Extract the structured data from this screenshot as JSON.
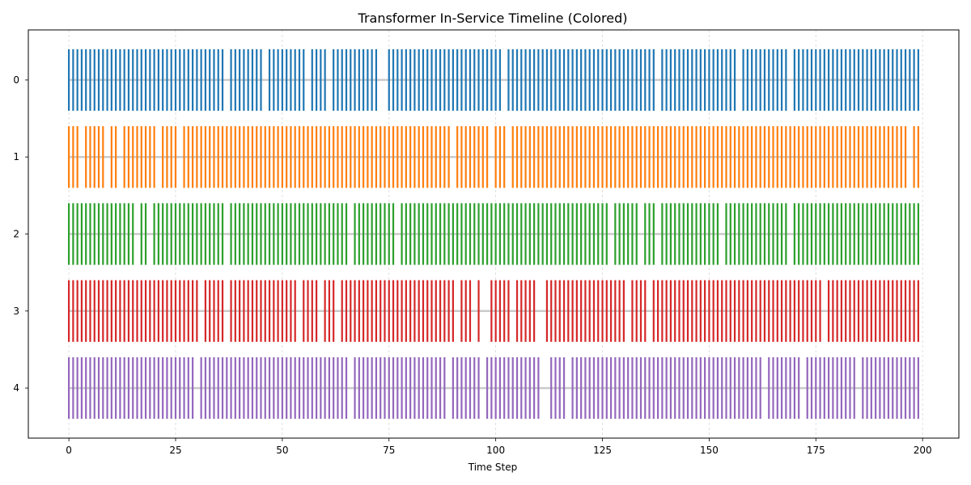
{
  "chart_data": {
    "type": "timeline",
    "title": "Transformer In-Service Timeline (Colored)",
    "xlabel": "Time Step",
    "ylabel": "",
    "xlim": [
      -9.5,
      208.5
    ],
    "ylim": [
      4.65,
      -0.65
    ],
    "x_ticks": [
      0,
      25,
      50,
      75,
      100,
      125,
      150,
      175,
      200
    ],
    "y_ticks": [
      0,
      1,
      2,
      3,
      4
    ],
    "grid": {
      "x": true,
      "y": false
    },
    "series": [
      {
        "row": 0,
        "color": "#1f77b4",
        "active_steps": [
          0,
          1,
          2,
          3,
          4,
          5,
          6,
          7,
          8,
          9,
          10,
          11,
          12,
          13,
          14,
          15,
          16,
          17,
          18,
          19,
          20,
          21,
          22,
          23,
          24,
          25,
          26,
          27,
          28,
          29,
          30,
          31,
          32,
          33,
          34,
          35,
          36,
          38,
          39,
          40,
          41,
          42,
          43,
          44,
          45,
          47,
          48,
          49,
          50,
          51,
          52,
          53,
          54,
          55,
          57,
          58,
          59,
          60,
          62,
          63,
          64,
          65,
          66,
          67,
          68,
          69,
          70,
          71,
          72,
          75,
          76,
          77,
          78,
          79,
          80,
          81,
          82,
          83,
          84,
          85,
          86,
          87,
          88,
          89,
          90,
          91,
          92,
          93,
          94,
          95,
          96,
          97,
          98,
          99,
          100,
          101,
          103,
          104,
          105,
          106,
          107,
          108,
          109,
          110,
          111,
          112,
          113,
          114,
          115,
          116,
          117,
          118,
          119,
          120,
          121,
          122,
          123,
          124,
          125,
          126,
          127,
          128,
          129,
          130,
          131,
          132,
          133,
          134,
          135,
          136,
          137,
          139,
          140,
          141,
          142,
          143,
          144,
          145,
          146,
          147,
          148,
          149,
          150,
          151,
          152,
          153,
          154,
          155,
          156,
          158,
          159,
          160,
          161,
          162,
          163,
          164,
          165,
          166,
          167,
          168,
          170,
          171,
          172,
          173,
          174,
          175,
          176,
          177,
          178,
          179,
          180,
          181,
          182,
          183,
          184,
          185,
          186,
          187,
          188,
          189,
          190,
          191,
          192,
          193,
          194,
          195,
          196,
          197,
          198,
          199
        ]
      },
      {
        "row": 1,
        "color": "#ff7f0e",
        "active_steps": [
          0,
          1,
          2,
          4,
          5,
          6,
          7,
          8,
          10,
          11,
          13,
          14,
          15,
          16,
          17,
          18,
          19,
          20,
          22,
          23,
          24,
          25,
          27,
          28,
          29,
          30,
          31,
          32,
          33,
          34,
          35,
          36,
          37,
          38,
          39,
          40,
          41,
          42,
          43,
          44,
          45,
          46,
          47,
          48,
          49,
          50,
          51,
          52,
          53,
          54,
          55,
          56,
          57,
          58,
          59,
          60,
          61,
          62,
          63,
          64,
          65,
          66,
          67,
          68,
          69,
          70,
          71,
          72,
          73,
          74,
          75,
          76,
          77,
          78,
          79,
          80,
          81,
          82,
          83,
          84,
          85,
          86,
          87,
          88,
          89,
          91,
          92,
          93,
          94,
          95,
          96,
          97,
          98,
          100,
          101,
          102,
          104,
          105,
          106,
          107,
          108,
          109,
          110,
          111,
          112,
          113,
          114,
          115,
          116,
          117,
          118,
          119,
          120,
          121,
          122,
          123,
          124,
          125,
          126,
          127,
          128,
          129,
          130,
          131,
          132,
          133,
          134,
          135,
          136,
          137,
          138,
          139,
          140,
          141,
          142,
          143,
          144,
          145,
          146,
          147,
          148,
          149,
          150,
          151,
          152,
          153,
          154,
          155,
          156,
          157,
          158,
          159,
          160,
          161,
          162,
          163,
          164,
          165,
          166,
          167,
          168,
          169,
          170,
          171,
          172,
          173,
          174,
          175,
          176,
          177,
          178,
          179,
          180,
          181,
          182,
          183,
          184,
          185,
          186,
          187,
          188,
          189,
          190,
          191,
          192,
          193,
          194,
          195,
          196,
          198,
          199
        ]
      },
      {
        "row": 2,
        "color": "#2ca02c",
        "active_steps": [
          0,
          1,
          2,
          3,
          4,
          5,
          6,
          7,
          8,
          9,
          10,
          11,
          12,
          13,
          14,
          15,
          17,
          18,
          20,
          21,
          22,
          23,
          24,
          25,
          26,
          27,
          28,
          29,
          30,
          31,
          32,
          33,
          34,
          35,
          36,
          38,
          39,
          40,
          41,
          42,
          43,
          44,
          45,
          46,
          47,
          48,
          49,
          50,
          51,
          52,
          53,
          54,
          55,
          56,
          57,
          58,
          59,
          60,
          61,
          62,
          63,
          64,
          65,
          67,
          68,
          69,
          70,
          71,
          72,
          73,
          74,
          75,
          76,
          78,
          79,
          80,
          81,
          82,
          83,
          84,
          85,
          86,
          87,
          88,
          89,
          90,
          91,
          92,
          93,
          94,
          95,
          96,
          97,
          98,
          99,
          100,
          101,
          102,
          103,
          104,
          105,
          106,
          107,
          108,
          109,
          110,
          111,
          112,
          113,
          114,
          115,
          116,
          117,
          118,
          119,
          120,
          121,
          122,
          123,
          124,
          125,
          126,
          128,
          129,
          130,
          131,
          132,
          133,
          135,
          136,
          137,
          139,
          140,
          141,
          142,
          143,
          144,
          145,
          146,
          147,
          148,
          149,
          150,
          151,
          152,
          154,
          155,
          156,
          157,
          158,
          159,
          160,
          161,
          162,
          163,
          164,
          165,
          166,
          167,
          168,
          170,
          171,
          172,
          173,
          174,
          175,
          176,
          177,
          178,
          179,
          180,
          181,
          182,
          183,
          184,
          185,
          186,
          187,
          188,
          189,
          190,
          191,
          192,
          193,
          194,
          195,
          196,
          197,
          198,
          199
        ]
      },
      {
        "row": 3,
        "color": "#d62728",
        "active_steps": [
          0,
          1,
          2,
          3,
          4,
          5,
          6,
          7,
          8,
          9,
          10,
          11,
          12,
          13,
          14,
          15,
          16,
          17,
          18,
          19,
          20,
          21,
          22,
          23,
          24,
          25,
          26,
          27,
          28,
          29,
          30,
          32,
          33,
          34,
          35,
          36,
          38,
          39,
          40,
          41,
          42,
          43,
          44,
          45,
          46,
          47,
          48,
          49,
          50,
          51,
          52,
          53,
          55,
          56,
          57,
          58,
          60,
          61,
          62,
          64,
          65,
          66,
          67,
          68,
          69,
          70,
          71,
          72,
          73,
          74,
          75,
          76,
          77,
          78,
          79,
          80,
          81,
          82,
          83,
          84,
          85,
          86,
          87,
          88,
          89,
          90,
          92,
          93,
          94,
          96,
          99,
          100,
          101,
          102,
          103,
          105,
          106,
          107,
          108,
          109,
          112,
          113,
          114,
          115,
          116,
          117,
          118,
          119,
          120,
          121,
          122,
          123,
          124,
          125,
          126,
          127,
          128,
          129,
          130,
          132,
          133,
          134,
          135,
          137,
          138,
          139,
          140,
          141,
          142,
          143,
          144,
          145,
          146,
          147,
          148,
          149,
          150,
          151,
          152,
          153,
          154,
          155,
          156,
          157,
          158,
          159,
          160,
          161,
          162,
          163,
          164,
          165,
          166,
          167,
          168,
          169,
          170,
          171,
          172,
          173,
          174,
          175,
          176,
          178,
          179,
          180,
          181,
          182,
          183,
          184,
          185,
          186,
          187,
          188,
          189,
          190,
          191,
          192,
          193,
          194,
          195,
          196,
          197,
          198,
          199
        ]
      },
      {
        "row": 4,
        "color": "#9467bd",
        "active_steps": [
          0,
          1,
          2,
          3,
          4,
          5,
          6,
          7,
          8,
          9,
          10,
          11,
          12,
          13,
          14,
          15,
          16,
          17,
          18,
          19,
          20,
          21,
          22,
          23,
          24,
          25,
          26,
          27,
          28,
          29,
          31,
          32,
          33,
          34,
          35,
          36,
          37,
          38,
          39,
          40,
          41,
          42,
          43,
          44,
          45,
          46,
          47,
          48,
          49,
          50,
          51,
          52,
          53,
          54,
          55,
          56,
          57,
          58,
          59,
          60,
          61,
          62,
          63,
          64,
          65,
          67,
          68,
          69,
          70,
          71,
          72,
          73,
          74,
          75,
          76,
          77,
          78,
          79,
          80,
          81,
          82,
          83,
          84,
          85,
          86,
          87,
          88,
          90,
          91,
          92,
          93,
          94,
          95,
          96,
          98,
          99,
          100,
          101,
          102,
          103,
          104,
          105,
          106,
          107,
          108,
          109,
          110,
          113,
          114,
          115,
          116,
          118,
          119,
          120,
          121,
          122,
          123,
          124,
          125,
          126,
          127,
          128,
          129,
          130,
          131,
          132,
          133,
          134,
          135,
          136,
          137,
          138,
          139,
          140,
          141,
          142,
          143,
          144,
          145,
          146,
          147,
          148,
          149,
          150,
          151,
          152,
          153,
          154,
          155,
          156,
          157,
          158,
          159,
          160,
          161,
          162,
          164,
          165,
          166,
          167,
          168,
          169,
          170,
          171,
          173,
          174,
          175,
          176,
          177,
          178,
          179,
          180,
          181,
          182,
          183,
          184,
          186,
          187,
          188,
          189,
          190,
          191,
          192,
          193,
          194,
          195,
          196,
          197,
          198,
          199
        ]
      }
    ]
  }
}
